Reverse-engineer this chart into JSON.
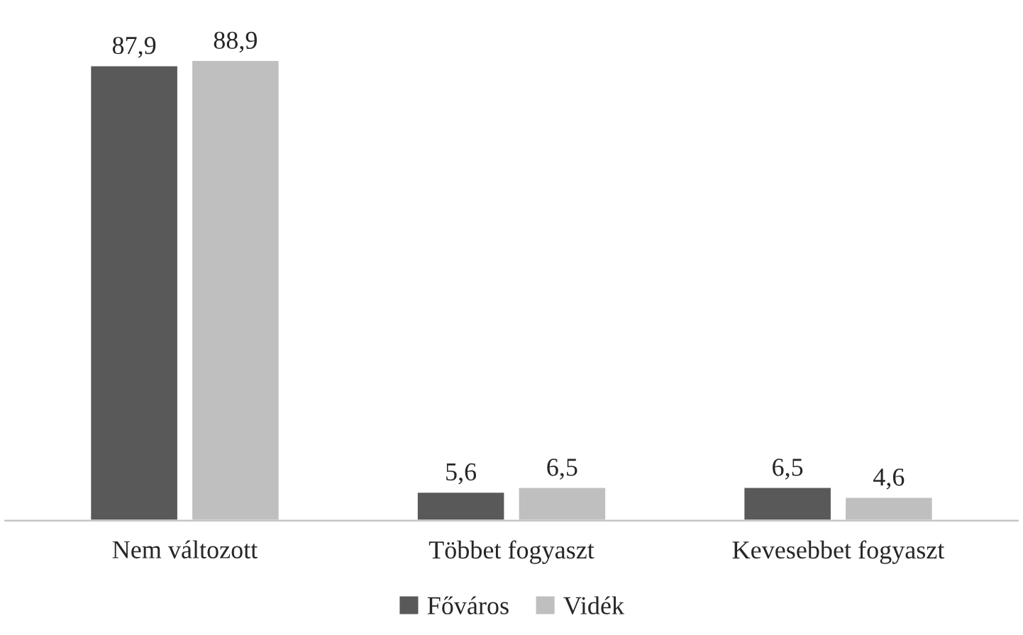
{
  "chart_data": {
    "type": "bar",
    "categories": [
      "Nem változott",
      "Többet fogyaszt",
      "Kevesebbet fogyaszt"
    ],
    "series": [
      {
        "name": "Főváros",
        "color": "#595959",
        "values": [
          87.9,
          5.6,
          6.5
        ],
        "value_labels": [
          "87,9",
          "5,6",
          "6,5"
        ]
      },
      {
        "name": "Vidék",
        "color": "#bfbfbf",
        "values": [
          88.9,
          6.5,
          4.6
        ],
        "value_labels": [
          "88,9",
          "6,5",
          "4,6"
        ]
      }
    ],
    "legend": "bottom",
    "grid": false
  }
}
